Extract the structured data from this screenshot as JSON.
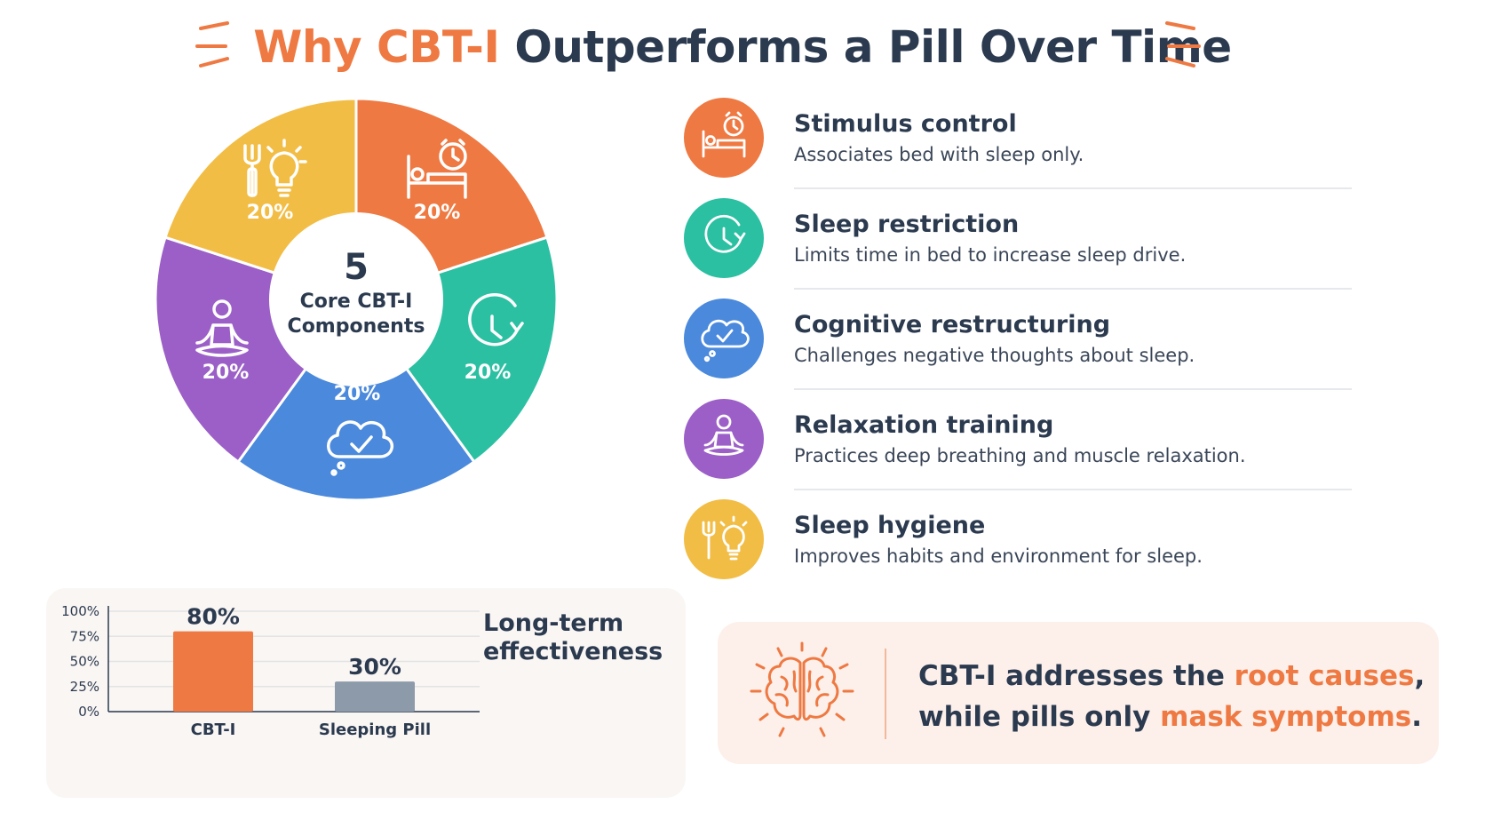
{
  "title": {
    "accent": "Why CBT-I",
    "rest": " Outperforms a Pill Over Time"
  },
  "colors": {
    "orange": "#ef7942",
    "teal": "#2bc0a2",
    "blue": "#4a89dc",
    "purple": "#9b5fc7",
    "yellow": "#f2bd45",
    "grey": "#8c9aaa",
    "navy": "#2b3a4f"
  },
  "donut": {
    "center_number": "5",
    "center_line1": "Core CBT-I",
    "center_line2": "Components"
  },
  "components": [
    {
      "name": "Stimulus control",
      "desc": "Associates bed with sleep only.",
      "percent": "20%",
      "value": 20,
      "color": "#ef7942",
      "icon": "bed-alarm-clock-icon"
    },
    {
      "name": "Sleep restriction",
      "desc": "Limits time in bed to increase sleep drive.",
      "percent": "20%",
      "value": 20,
      "color": "#2bc0a2",
      "icon": "clock-icon"
    },
    {
      "name": "Cognitive restructuring",
      "desc": "Challenges negative thoughts about sleep.",
      "percent": "20%",
      "value": 20,
      "color": "#4a89dc",
      "icon": "thought-cloud-check-icon"
    },
    {
      "name": "Relaxation training",
      "desc": "Practices deep breathing and muscle relaxation.",
      "percent": "20%",
      "value": 20,
      "color": "#9b5fc7",
      "icon": "meditation-icon"
    },
    {
      "name": "Sleep hygiene",
      "desc": "Improves habits and environment for sleep.",
      "percent": "20%",
      "value": 20,
      "color": "#f2bd45",
      "icon": "fork-lightbulb-icon"
    }
  ],
  "chart_data": [
    {
      "type": "pie",
      "categories": [
        "Stimulus control",
        "Sleep restriction",
        "Cognitive restructuring",
        "Relaxation training",
        "Sleep hygiene"
      ],
      "values": [
        20,
        20,
        20,
        20,
        20
      ],
      "labels": [
        "20%",
        "20%",
        "20%",
        "20%",
        "20%"
      ],
      "center_text": "5 Core CBT-I Components"
    },
    {
      "type": "bar",
      "title": "Long-term effectiveness",
      "categories": [
        "CBT-I",
        "Sleeping Pill"
      ],
      "values": [
        80,
        30
      ],
      "value_labels": [
        "80%",
        "30%"
      ],
      "ylim": [
        0,
        100
      ],
      "yticks": [
        "0%",
        "25%",
        "50%",
        "75%",
        "100%"
      ],
      "bar_colors": [
        "#ef7942",
        "#8c9aaa"
      ],
      "grid": true
    }
  ],
  "callout": {
    "line1_prefix": "CBT-I addresses the ",
    "line1_highlight": "root causes",
    "line1_suffix": ",",
    "line2_prefix": "while pills only ",
    "line2_highlight": "mask symptoms",
    "line2_suffix": ".",
    "icon": "brain-icon"
  }
}
